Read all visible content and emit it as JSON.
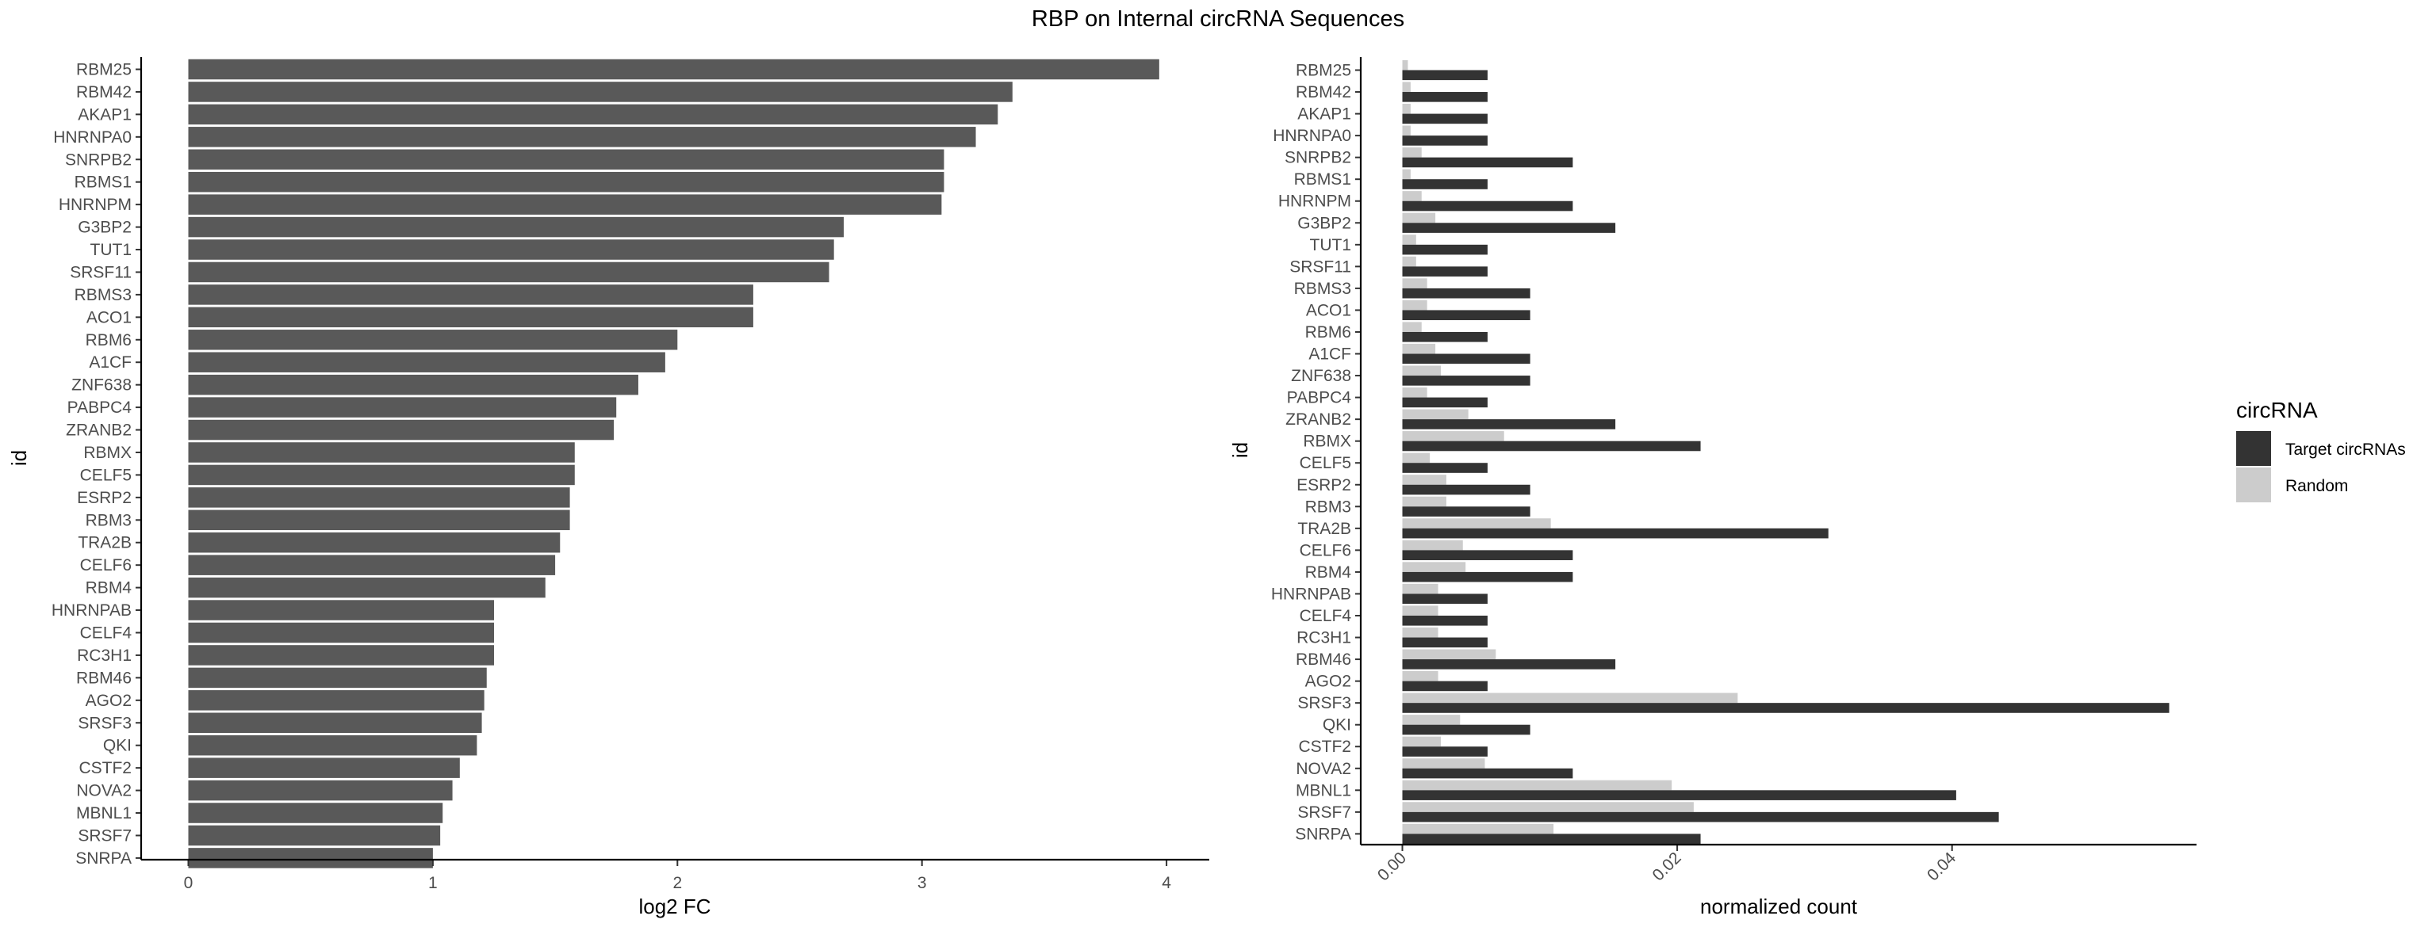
{
  "title": "RBP on Internal circRNA Sequences",
  "chart_data": [
    {
      "type": "bar",
      "orientation": "horizontal",
      "xlabel": "log2 FC",
      "ylabel": "id",
      "xlim": [
        0,
        4.15
      ],
      "xticks": [
        "0",
        "1",
        "2",
        "3",
        "4"
      ],
      "grid": false,
      "color": "#595959",
      "categories": [
        "RBM25",
        "RBM42",
        "AKAP1",
        "HNRNPA0",
        "SNRPB2",
        "RBMS1",
        "HNRNPM",
        "G3BP2",
        "TUT1",
        "SRSF11",
        "RBMS3",
        "ACO1",
        "RBM6",
        "A1CF",
        "ZNF638",
        "PABPC4",
        "ZRANB2",
        "RBMX",
        "CELF5",
        "ESRP2",
        "RBM3",
        "TRA2B",
        "CELF6",
        "RBM4",
        "HNRNPAB",
        "CELF4",
        "RC3H1",
        "RBM46",
        "AGO2",
        "SRSF3",
        "QKI",
        "CSTF2",
        "NOVA2",
        "MBNL1",
        "SRSF7",
        "SNRPA"
      ],
      "values": [
        3.97,
        3.37,
        3.31,
        3.22,
        3.09,
        3.09,
        3.08,
        2.68,
        2.64,
        2.62,
        2.31,
        2.31,
        2.0,
        1.95,
        1.84,
        1.75,
        1.74,
        1.58,
        1.58,
        1.56,
        1.56,
        1.52,
        1.5,
        1.46,
        1.25,
        1.25,
        1.25,
        1.22,
        1.21,
        1.2,
        1.18,
        1.11,
        1.08,
        1.04,
        1.03,
        1.0
      ]
    },
    {
      "type": "bar",
      "orientation": "horizontal",
      "xlabel": "normalized count",
      "ylabel": "id",
      "xlim": [
        -0.003,
        0.0567
      ],
      "xticks": [
        "0.00",
        "0.02",
        "0.04"
      ],
      "grid": false,
      "categories": [
        "RBM25",
        "RBM42",
        "AKAP1",
        "HNRNPA0",
        "SNRPB2",
        "RBMS1",
        "HNRNPM",
        "G3BP2",
        "TUT1",
        "SRSF11",
        "RBMS3",
        "ACO1",
        "RBM6",
        "A1CF",
        "ZNF638",
        "PABPC4",
        "ZRANB2",
        "RBMX",
        "CELF5",
        "ESRP2",
        "RBM3",
        "TRA2B",
        "CELF6",
        "RBM4",
        "HNRNPAB",
        "CELF4",
        "RC3H1",
        "RBM46",
        "AGO2",
        "SRSF3",
        "QKI",
        "CSTF2",
        "NOVA2",
        "MBNL1",
        "SRSF7",
        "SNRPA"
      ],
      "legend": {
        "title": "circRNA",
        "position": "right"
      },
      "series": [
        {
          "name": "Target circRNAs",
          "color": "#333333",
          "values": [
            0.0062,
            0.0062,
            0.0062,
            0.0062,
            0.0124,
            0.0062,
            0.0124,
            0.0155,
            0.0062,
            0.0062,
            0.0093,
            0.0093,
            0.0062,
            0.0093,
            0.0093,
            0.0062,
            0.0155,
            0.0217,
            0.0062,
            0.0093,
            0.0093,
            0.031,
            0.0124,
            0.0124,
            0.0062,
            0.0062,
            0.0062,
            0.0155,
            0.0062,
            0.0558,
            0.0093,
            0.0062,
            0.0124,
            0.0403,
            0.0434,
            0.0217
          ]
        },
        {
          "name": "Random",
          "color": "#cccccc",
          "values": [
            0.0004,
            0.0006,
            0.0006,
            0.0006,
            0.0014,
            0.0006,
            0.0014,
            0.0024,
            0.001,
            0.001,
            0.0018,
            0.0018,
            0.0014,
            0.0024,
            0.0028,
            0.0018,
            0.0048,
            0.0074,
            0.002,
            0.0032,
            0.0032,
            0.0108,
            0.0044,
            0.0046,
            0.0026,
            0.0026,
            0.0026,
            0.0068,
            0.0026,
            0.0244,
            0.0042,
            0.0028,
            0.006,
            0.0196,
            0.0212,
            0.011
          ]
        }
      ]
    }
  ]
}
